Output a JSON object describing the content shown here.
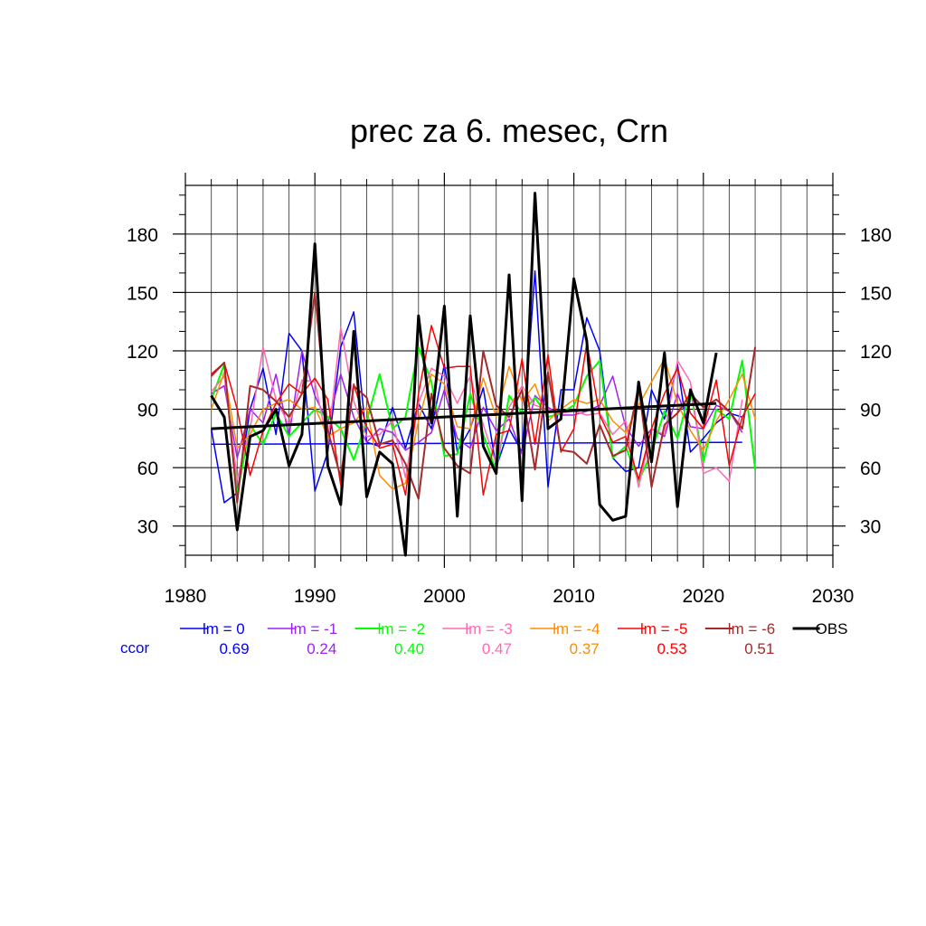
{
  "chart_data": {
    "type": "line",
    "title": "prec za 6. mesec, Crn",
    "xlabel": "",
    "ylabel": "",
    "xlim": [
      1980,
      2030
    ],
    "ylim": [
      15,
      205
    ],
    "x_ticks": [
      1980,
      1990,
      2000,
      2010,
      2020,
      2030
    ],
    "y_ticks": [
      30,
      60,
      90,
      120,
      150,
      180
    ],
    "grid": true,
    "legend_position": "bottom",
    "ccor_label": "ccor",
    "x_start": 1982,
    "series": [
      {
        "name": "lm = 0",
        "color": "#0000ff",
        "width": 1.5,
        "ccor": "0.69",
        "values": [
          80,
          42,
          47,
          90,
          111,
          77,
          129,
          120,
          48,
          68,
          122,
          140,
          73,
          71,
          91,
          70,
          93,
          80,
          113,
          68,
          80,
          101,
          60,
          80,
          68,
          161,
          50,
          100,
          100,
          137,
          120,
          65,
          58,
          60,
          100,
          85,
          113,
          68,
          75,
          83,
          88,
          86,
          null
        ],
        "trend": [
          72,
          73
        ]
      },
      {
        "name": "lm = -1",
        "color": "#a020f0",
        "width": 1.5,
        "ccor": "0.24",
        "values": [
          98,
          102,
          65,
          90,
          83,
          108,
          76,
          120,
          97,
          83,
          108,
          86,
          73,
          80,
          78,
          69,
          73,
          78,
          100,
          75,
          70,
          91,
          79,
          85,
          67,
          97,
          91,
          87,
          87,
          89,
          92,
          107,
          81,
          71,
          80,
          76,
          98,
          81,
          80,
          92,
          89,
          78,
          null
        ]
      },
      {
        "name": "lm = -2",
        "color": "#00ff00",
        "width": 2,
        "ccor": "0.40",
        "values": [
          95,
          113,
          46,
          82,
          72,
          88,
          76,
          83,
          90,
          86,
          80,
          64,
          84,
          108,
          80,
          86,
          122,
          104,
          66,
          67,
          98,
          77,
          58,
          97,
          88,
          96,
          86,
          88,
          92,
          107,
          115,
          65,
          71,
          53,
          68,
          89,
          75,
          100,
          63,
          90,
          85,
          115,
          59
        ]
      },
      {
        "name": "lm = -3",
        "color": "#ff69b4",
        "width": 1.5,
        "ccor": "0.47",
        "values": [
          99,
          107,
          54,
          80,
          122,
          95,
          82,
          105,
          104,
          72,
          132,
          94,
          76,
          77,
          84,
          55,
          93,
          111,
          107,
          93,
          107,
          82,
          62,
          91,
          102,
          92,
          90,
          88,
          89,
          87,
          88,
          77,
          84,
          50,
          80,
          77,
          115,
          104,
          57,
          60,
          53,
          95,
          null
        ]
      },
      {
        "name": "lm = -4",
        "color": "#ff8c00",
        "width": 1.5,
        "ccor": "0.37",
        "values": [
          90,
          109,
          70,
          77,
          90,
          93,
          95,
          90,
          91,
          76,
          80,
          83,
          91,
          56,
          49,
          52,
          84,
          108,
          103,
          81,
          80,
          106,
          86,
          112,
          94,
          103,
          84,
          90,
          95,
          93,
          95,
          84,
          78,
          92,
          104,
          116,
          93,
          79,
          69,
          84,
          95,
          108,
          85
        ]
      },
      {
        "name": "lm = -5",
        "color": "#ff0000",
        "width": 1.5,
        "ccor": "0.53",
        "values": [
          108,
          114,
          90,
          56,
          79,
          93,
          103,
          98,
          106,
          95,
          51,
          103,
          81,
          70,
          72,
          46,
          98,
          133,
          111,
          112,
          112,
          46,
          77,
          79,
          116,
          72,
          118,
          68,
          80,
          124,
          87,
          73,
          76,
          54,
          80,
          98,
          111,
          88,
          80,
          105,
          61,
          86,
          98
        ]
      },
      {
        "name": "lm = -6",
        "color": "#a52a2a",
        "width": 2,
        "ccor": "0.51",
        "values": [
          107,
          114,
          42,
          102,
          100,
          94,
          86,
          98,
          150,
          79,
          55,
          102,
          96,
          72,
          74,
          62,
          44,
          98,
          70,
          61,
          57,
          120,
          92,
          86,
          100,
          59,
          109,
          69,
          68,
          62,
          82,
          66,
          69,
          102,
          50,
          82,
          88,
          98,
          91,
          95,
          89,
          80,
          122
        ]
      },
      {
        "name": "OBS",
        "color": "#000000",
        "width": 3,
        "ccor": "",
        "values": [
          97,
          86,
          28,
          76,
          79,
          90,
          61,
          77,
          175,
          61,
          41,
          130,
          45,
          68,
          62,
          15,
          138,
          83,
          143,
          35,
          138,
          71,
          57,
          159,
          43,
          201,
          80,
          85,
          157,
          125,
          41,
          33,
          35,
          104,
          63,
          119,
          40,
          100,
          83,
          119,
          null,
          null,
          null
        ],
        "trend": [
          80,
          93
        ]
      }
    ]
  }
}
